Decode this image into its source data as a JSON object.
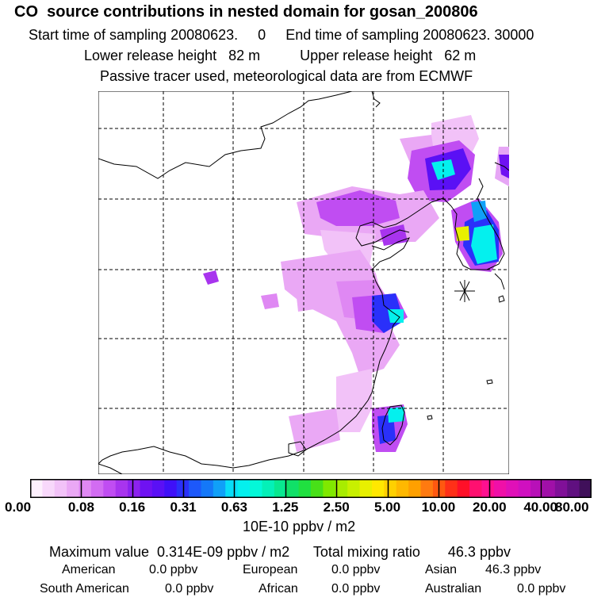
{
  "header": {
    "title": "CO  source contributions in nested domain for gosan_200806",
    "start_label": "Start time of sampling 20080623.     0",
    "end_label": "End time of sampling 20080623. 30000",
    "lower_label": "Lower release height   82 m",
    "upper_label": "Upper release height   62 m",
    "tracer_note": "Passive tracer used, meteorological data are from ECMWF"
  },
  "chart_data": {
    "type": "heatmap",
    "title": "CO  source contributions in nested domain for gosan_200806",
    "colorbar": {
      "tick_labels": [
        "0.00",
        "0.08",
        "0.16",
        "0.31",
        "0.63",
        "1.25",
        "2.50",
        "5.00",
        "10.00",
        "20.00",
        "40.00",
        "80.00"
      ],
      "units": "10E-10 ppbv / m2",
      "colors": [
        "#fdf0fd",
        "#f8d8fb",
        "#f2c2f8",
        "#eaa8f5",
        "#df88f3",
        "#d26cf2",
        "#c04df2",
        "#a834ee",
        "#8c22ef",
        "#6f12f2",
        "#5a10f5",
        "#3f10f8",
        "#2a30fa",
        "#1d58fa",
        "#1478f8",
        "#10a0f8",
        "#08ddf8",
        "#04f0ee",
        "#04f8d8",
        "#04f0b8",
        "#08e890",
        "#10e068",
        "#20e040",
        "#48e018",
        "#80e800",
        "#a8ec00",
        "#c8f000",
        "#e8f000",
        "#ffe800",
        "#ffd000",
        "#ffb800",
        "#ffa000",
        "#ff7a10",
        "#ff5810",
        "#ff3018",
        "#ff1028",
        "#ff1070",
        "#ff1090",
        "#f010a8",
        "#e010b8",
        "#d010c0",
        "#b810b8",
        "#a010a8",
        "#801098",
        "#601080",
        "#40105a"
      ],
      "groups": 11
    },
    "plume_cells": [
      {
        "lon": 133.0,
        "lat": 36.5,
        "level": 5
      },
      {
        "lon": 133.5,
        "lat": 36.0,
        "level": 5
      },
      {
        "lon": 133.0,
        "lat": 36.0,
        "level": 4
      },
      {
        "lon": 133.5,
        "lat": 35.0,
        "level": 5
      },
      {
        "lon": 134.0,
        "lat": 35.0,
        "level": 5
      },
      {
        "lon": 133.5,
        "lat": 34.5,
        "level": 5
      },
      {
        "lon": 132.0,
        "lat": 39.5,
        "level": 5
      },
      {
        "lon": 132.5,
        "lat": 39.5,
        "level": 5
      },
      {
        "lon": 132.5,
        "lat": 40.0,
        "level": 4
      },
      {
        "lon": 131.5,
        "lat": 39.0,
        "level": 4
      },
      {
        "lon": 132.5,
        "lat": 36.5,
        "level": 7
      },
      {
        "lon": 127.5,
        "lat": 31.5,
        "level": 4
      },
      {
        "lon": 127.5,
        "lat": 24.5,
        "level": 5
      },
      {
        "lon": 127.0,
        "lat": 23.5,
        "level": 4
      }
    ],
    "station_symbol": "asterisk",
    "stats": {
      "max_label": "Maximum value  0.314E-09 ppbv / m2",
      "total_label": "Total mixing ratio       46.3 ppbv"
    },
    "sources": [
      {
        "name": "American",
        "value": "0.0 ppbv"
      },
      {
        "name": "European",
        "value": "0.0 ppbv"
      },
      {
        "name": "Asian",
        "value": "46.3 ppbv"
      },
      {
        "name": "South American",
        "value": "0.0 ppbv"
      },
      {
        "name": "African",
        "value": "0.0 ppbv"
      },
      {
        "name": "Australian",
        "value": "0.0 ppbv"
      }
    ],
    "map": {
      "lon_range": [
        110,
        140
      ],
      "lat_range": [
        20,
        48
      ],
      "gridlines": true
    }
  }
}
